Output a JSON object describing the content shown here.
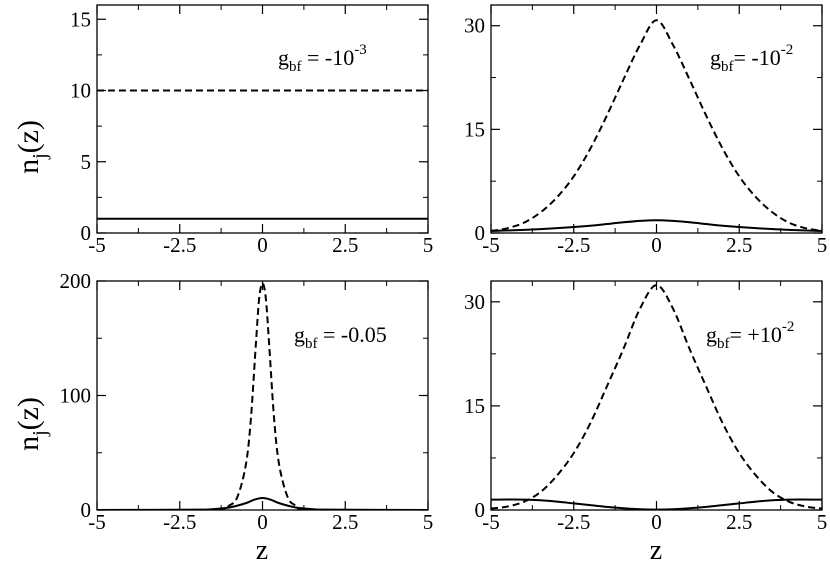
{
  "chart_data": [
    {
      "type": "line",
      "panel": "top-left",
      "xlim": [
        -5,
        5
      ],
      "ylim": [
        0,
        16
      ],
      "x_ticks": [
        -5,
        -2.5,
        0,
        2.5,
        5
      ],
      "x_tick_labels": [
        "-5",
        "-2.5",
        "0",
        "2.5",
        "5"
      ],
      "y_ticks": [
        0,
        5,
        10,
        15
      ],
      "y_tick_labels": [
        "0",
        "5",
        "10",
        "15"
      ],
      "ylabel": {
        "main": "n",
        "sub": "j",
        "tail": "(z)"
      },
      "xlabel": "",
      "annotation": {
        "base": "g",
        "sub": "bf",
        "mid": " = -10",
        "sup": "-3"
      },
      "series": [
        {
          "style": "dashed",
          "x": [
            -5,
            -2.5,
            0,
            2.5,
            5
          ],
          "y": [
            10,
            10,
            10,
            10,
            10
          ]
        },
        {
          "style": "solid",
          "x": [
            -5,
            -2.5,
            0,
            2.5,
            5
          ],
          "y": [
            1,
            1,
            1,
            1,
            1
          ]
        }
      ]
    },
    {
      "type": "line",
      "panel": "top-right",
      "xlim": [
        -5,
        5
      ],
      "ylim": [
        0,
        33
      ],
      "x_ticks": [
        -5,
        -2.5,
        0,
        2.5,
        5
      ],
      "x_tick_labels": [
        "-5",
        "-2.5",
        "0",
        "2.5",
        "5"
      ],
      "y_ticks": [
        0,
        15,
        30
      ],
      "y_tick_labels": [
        "0",
        "15",
        "30"
      ],
      "xlabel": "",
      "annotation": {
        "base": "g",
        "sub": "bf",
        "mid": "= -10",
        "sup": "-2"
      },
      "series": [
        {
          "style": "dashed",
          "x": [
            -5,
            -4.5,
            -4,
            -3.5,
            -3,
            -2.5,
            -2,
            -1.5,
            -1,
            -0.5,
            0,
            0.5,
            1,
            1.5,
            2,
            2.5,
            3,
            3.5,
            4,
            4.5,
            5
          ],
          "y": [
            0.3,
            0.7,
            1.5,
            3.0,
            5.2,
            8.2,
            12.2,
            17.0,
            22.2,
            27.2,
            30.8,
            27.2,
            22.2,
            17.0,
            12.2,
            8.2,
            5.2,
            3.0,
            1.5,
            0.7,
            0.3
          ]
        },
        {
          "style": "solid",
          "x": [
            -5,
            -4,
            -3,
            -2,
            -1.5,
            -1,
            -0.5,
            0,
            0.5,
            1,
            1.5,
            2,
            3,
            4,
            5
          ],
          "y": [
            0.3,
            0.45,
            0.7,
            1.05,
            1.3,
            1.55,
            1.75,
            1.85,
            1.75,
            1.55,
            1.3,
            1.05,
            0.7,
            0.45,
            0.3
          ]
        }
      ]
    },
    {
      "type": "line",
      "panel": "bottom-left",
      "xlim": [
        -5,
        5
      ],
      "ylim": [
        0,
        200
      ],
      "x_ticks": [
        -5,
        -2.5,
        0,
        2.5,
        5
      ],
      "x_tick_labels": [
        "-5",
        "-2.5",
        "0",
        "2.5",
        "5"
      ],
      "y_ticks": [
        0,
        100,
        200
      ],
      "y_tick_labels": [
        "0",
        "100",
        "200"
      ],
      "ylabel": {
        "main": "n",
        "sub": "j",
        "tail": "(z)"
      },
      "xlabel": "z",
      "annotation": {
        "base": "g",
        "sub": "bf",
        "mid": " = -0.05",
        "sup": ""
      },
      "series": [
        {
          "style": "dashed",
          "x": [
            -5,
            -1.5,
            -1,
            -0.75,
            -0.5,
            -0.35,
            -0.2,
            -0.1,
            0,
            0.1,
            0.2,
            0.35,
            0.5,
            0.75,
            1,
            1.5,
            5
          ],
          "y": [
            0,
            0.3,
            4,
            12,
            40,
            80,
            145,
            185,
            198,
            185,
            145,
            80,
            40,
            12,
            4,
            0.3,
            0
          ]
        },
        {
          "style": "solid",
          "x": [
            -5,
            -2,
            -1.5,
            -1,
            -0.5,
            -0.25,
            0,
            0.25,
            0.5,
            1,
            1.5,
            2,
            5
          ],
          "y": [
            0,
            0.3,
            0.8,
            2.2,
            6,
            9,
            10.5,
            9,
            6,
            2.2,
            0.8,
            0.3,
            0
          ]
        }
      ]
    },
    {
      "type": "line",
      "panel": "bottom-right",
      "xlim": [
        -5,
        5
      ],
      "ylim": [
        0,
        33
      ],
      "x_ticks": [
        -5,
        -2.5,
        0,
        2.5,
        5
      ],
      "x_tick_labels": [
        "-5",
        "-2.5",
        "0",
        "2.5",
        "5"
      ],
      "y_ticks": [
        0,
        15,
        30
      ],
      "y_tick_labels": [
        "0",
        "15",
        "30"
      ],
      "xlabel": "z",
      "annotation": {
        "base": "g",
        "sub": "bf",
        "mid": "= +10",
        "sup": "-2"
      },
      "series": [
        {
          "style": "dashed",
          "x": [
            -5,
            -4.5,
            -4,
            -3.5,
            -3,
            -2.5,
            -2,
            -1.5,
            -1,
            -0.5,
            0,
            0.5,
            1,
            1.5,
            2,
            2.5,
            3,
            3.5,
            4,
            4.5,
            5
          ],
          "y": [
            0.2,
            0.5,
            1.2,
            2.6,
            5.0,
            8.2,
            12.5,
            17.8,
            23.2,
            29.0,
            32.4,
            29.0,
            23.2,
            17.8,
            12.5,
            8.2,
            5.0,
            2.6,
            1.2,
            0.5,
            0.2
          ]
        },
        {
          "style": "solid",
          "x": [
            -5,
            -4,
            -3.5,
            -3,
            -2.5,
            -2,
            -1.5,
            -1,
            -0.5,
            0,
            0.5,
            1,
            1.5,
            2,
            2.5,
            3,
            3.5,
            4,
            5
          ],
          "y": [
            1.5,
            1.5,
            1.4,
            1.2,
            0.95,
            0.7,
            0.45,
            0.25,
            0.1,
            0.05,
            0.1,
            0.25,
            0.45,
            0.7,
            0.95,
            1.2,
            1.4,
            1.5,
            1.5
          ]
        }
      ]
    }
  ]
}
